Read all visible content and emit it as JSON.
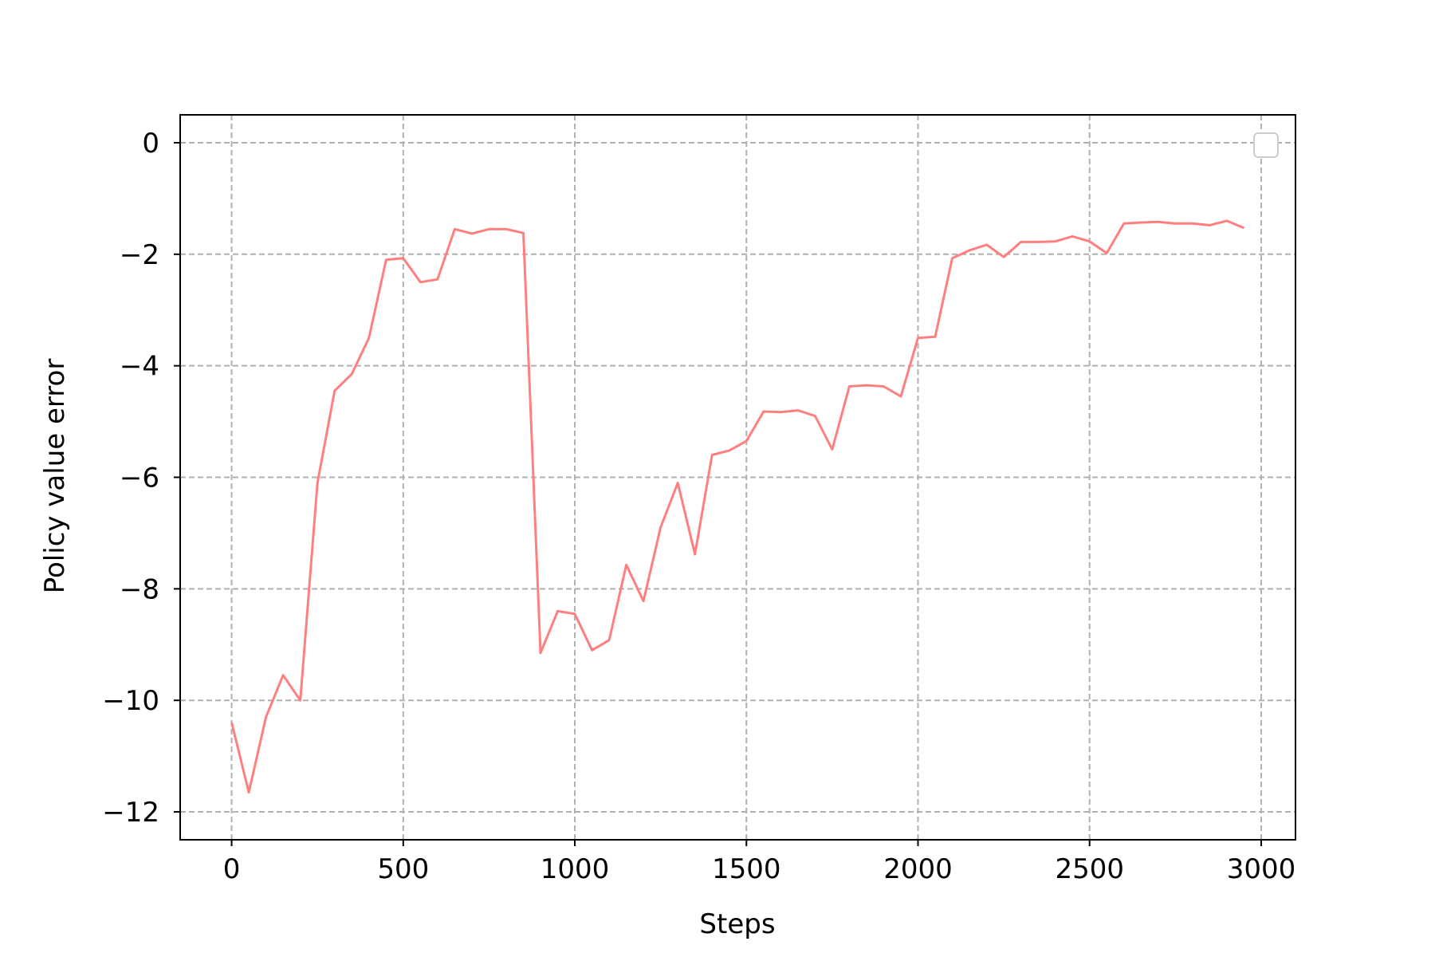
{
  "chart_data": {
    "type": "line",
    "title": "",
    "xlabel": "Steps",
    "ylabel": "Policy value error",
    "xlim": [
      -150,
      3100
    ],
    "ylim": [
      -12.5,
      0.5
    ],
    "xticks": [
      0,
      500,
      1000,
      1500,
      2000,
      2500,
      3000
    ],
    "yticks": [
      0,
      -2,
      -4,
      -6,
      -8,
      -10,
      -12
    ],
    "xtick_labels": [
      "0",
      "500",
      "1000",
      "1500",
      "2000",
      "2500",
      "3000"
    ],
    "ytick_labels": [
      "0",
      "−2",
      "−4",
      "−6",
      "−8",
      "−10",
      "−12"
    ],
    "grid": true,
    "legend": "top-right (empty)",
    "line_color": "#ff7f7f",
    "series": [
      {
        "x": [
          0,
          50,
          100,
          150,
          200,
          250,
          300,
          350,
          400,
          450,
          500,
          550,
          600,
          650,
          700,
          750,
          800,
          850,
          900,
          950,
          1000,
          1050,
          1100,
          1150,
          1200,
          1250,
          1300,
          1350,
          1400,
          1450,
          1500,
          1550,
          1600,
          1650,
          1700,
          1750,
          1800,
          1850,
          1900,
          1950,
          2000,
          2050,
          2100,
          2150,
          2200,
          2250,
          2300,
          2350,
          2400,
          2450,
          2500,
          2550,
          2600,
          2650,
          2700,
          2750,
          2800,
          2850,
          2900,
          2950
        ],
        "values": [
          -10.4,
          -11.65,
          -10.3,
          -9.55,
          -10.0,
          -6.1,
          -4.45,
          -4.15,
          -3.5,
          -2.1,
          -2.07,
          -2.5,
          -2.45,
          -1.55,
          -1.63,
          -1.55,
          -1.55,
          -1.62,
          -9.15,
          -8.4,
          -8.45,
          -9.1,
          -8.92,
          -7.57,
          -8.22,
          -6.9,
          -6.1,
          -7.38,
          -5.6,
          -5.52,
          -5.35,
          -4.82,
          -4.83,
          -4.8,
          -4.9,
          -5.5,
          -4.37,
          -4.35,
          -4.37,
          -4.55,
          -3.5,
          -3.48,
          -2.07,
          -1.93,
          -1.83,
          -2.05,
          -1.78,
          -1.78,
          -1.77,
          -1.68,
          -1.77,
          -1.98,
          -1.45,
          -1.43,
          -1.42,
          -1.45,
          -1.45,
          -1.48,
          -1.4,
          -1.53
        ]
      }
    ]
  }
}
